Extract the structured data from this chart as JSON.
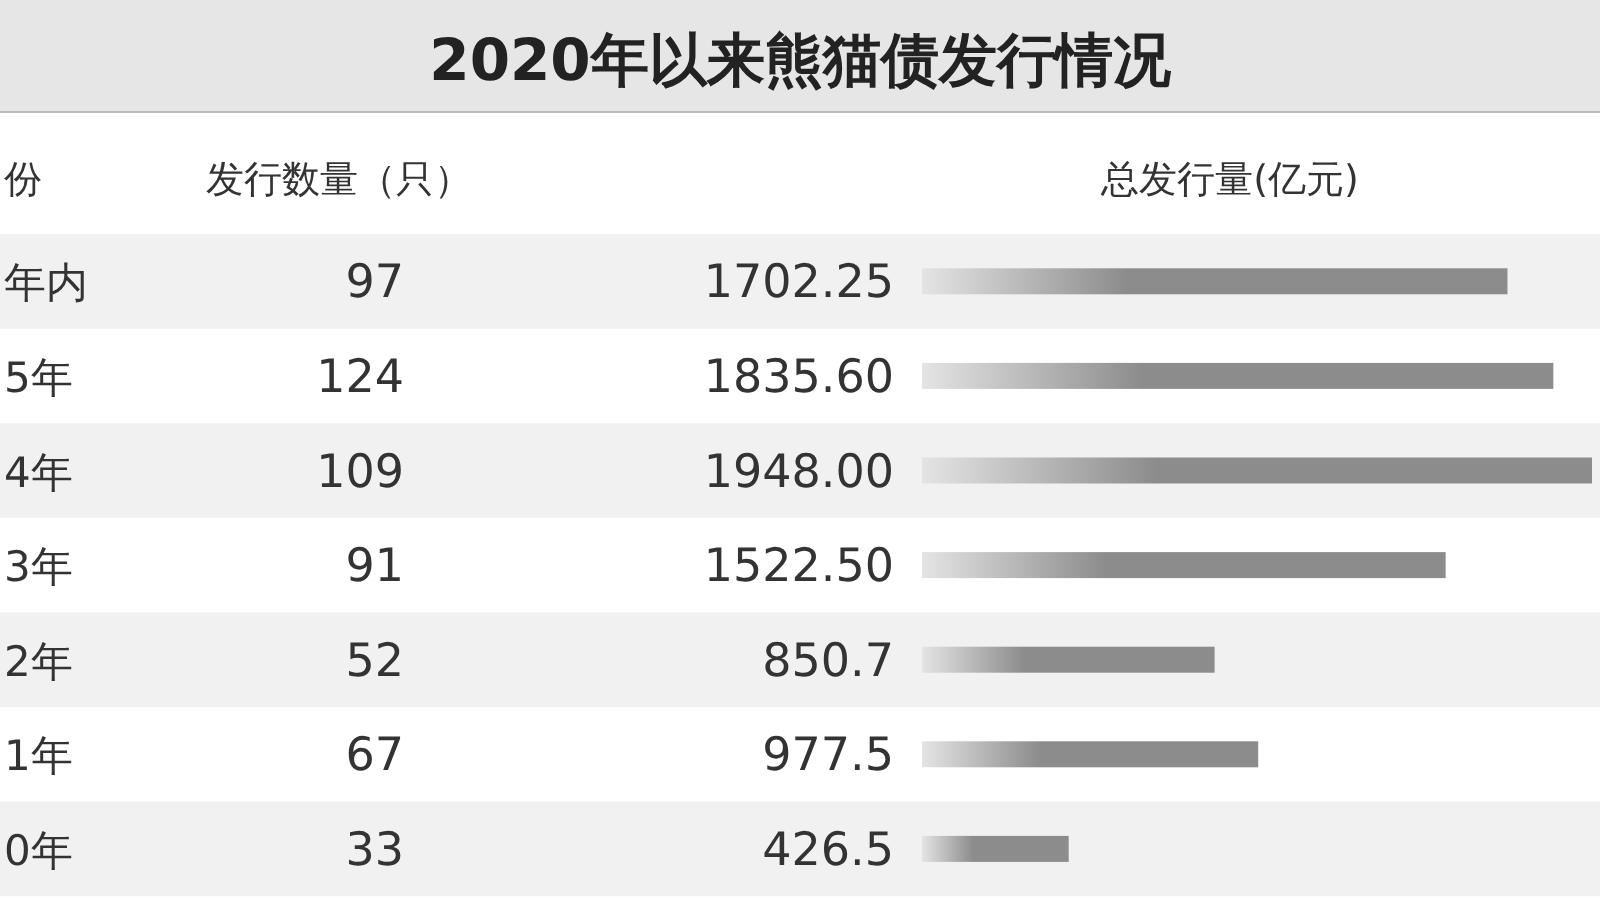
{
  "chart_data": {
    "type": "bar",
    "orientation": "horizontal",
    "title": "2020年以来熊猫债发行情况",
    "ylabel": "份",
    "xlabel": "总发行量(亿元)",
    "categories": [
      "年内",
      "5年",
      "4年",
      "3年",
      "2年",
      "1年",
      "0年"
    ],
    "values": [
      1702.25,
      1835.6,
      1948.0,
      1522.5,
      850.7,
      977.5,
      426.5
    ],
    "value_labels": [
      "1702.25",
      "1835.60",
      "1948.00",
      "1522.50",
      "850.7",
      "977.5",
      "426.5"
    ],
    "color": "#8c8c8c",
    "annotations": [
      "发行数量（只）",
      "97",
      "124",
      "109",
      "91",
      "52",
      "67",
      "33"
    ]
  }
}
